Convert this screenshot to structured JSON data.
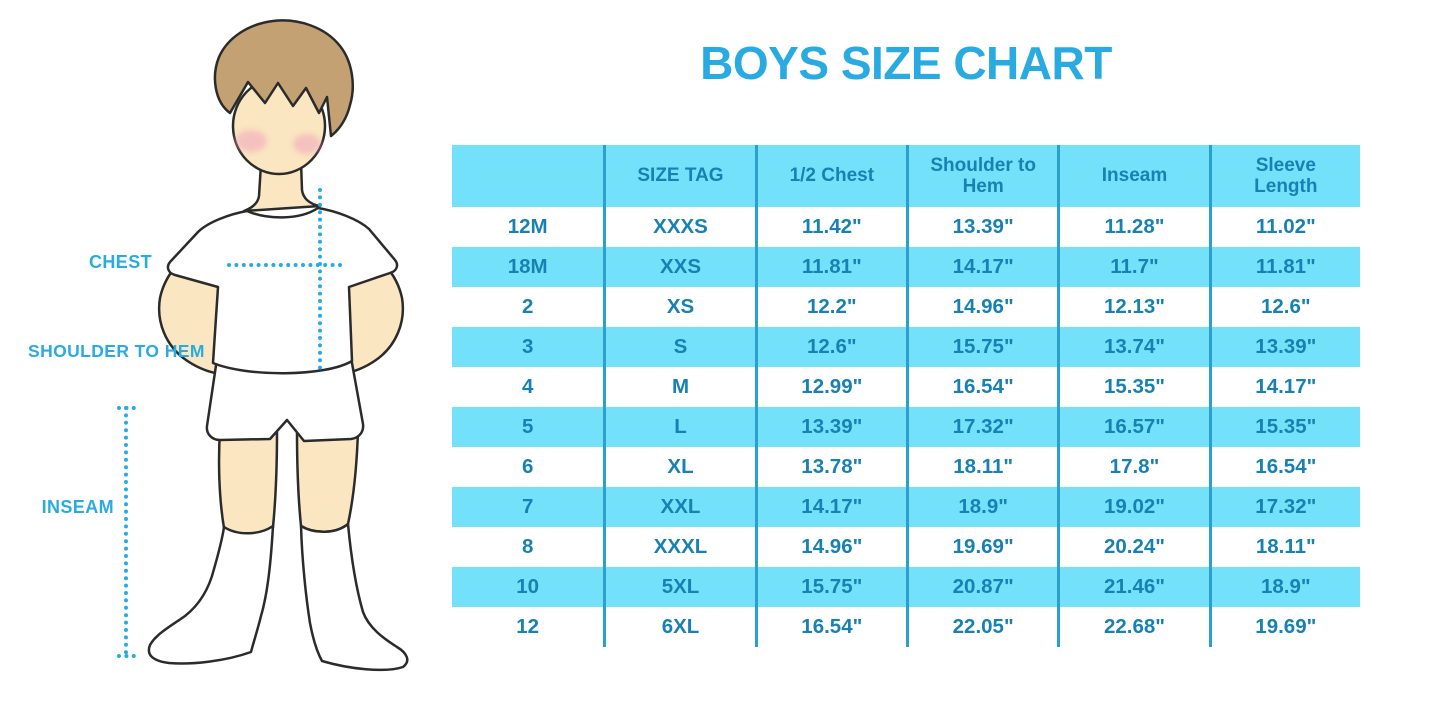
{
  "title": "BOYS SIZE CHART",
  "figure": {
    "name": "boy-measurement-illustration",
    "labels": {
      "chest": "CHEST",
      "shoulder_to_hem": "SHOULDER TO HEM",
      "inseam": "INSEAM"
    }
  },
  "colors": {
    "accent_blue": "#29ABE2",
    "table_text_blue": "#1781B3",
    "stripe_cyan": "#74E1FB",
    "separator_blue": "#2CA0CC",
    "skin": "#FAE6C0",
    "hair_brown": "#C4A172",
    "blush_pink": "#F2A9BE"
  },
  "chart_data": {
    "type": "table",
    "title": "BOYS SIZE CHART",
    "headers": [
      "",
      "SIZE TAG",
      "1/2 Chest",
      "Shoulder to Hem",
      "Inseam",
      "Sleeve Length"
    ],
    "rows": [
      [
        "12M",
        "XXXS",
        "11.42\"",
        "13.39\"",
        "11.28\"",
        "11.02\""
      ],
      [
        "18M",
        "XXS",
        "11.81\"",
        "14.17\"",
        "11.7\"",
        "11.81\""
      ],
      [
        "2",
        "XS",
        "12.2\"",
        "14.96\"",
        "12.13\"",
        "12.6\""
      ],
      [
        "3",
        "S",
        "12.6\"",
        "15.75\"",
        "13.74\"",
        "13.39\""
      ],
      [
        "4",
        "M",
        "12.99\"",
        "16.54\"",
        "15.35\"",
        "14.17\""
      ],
      [
        "5",
        "L",
        "13.39\"",
        "17.32\"",
        "16.57\"",
        "15.35\""
      ],
      [
        "6",
        "XL",
        "13.78\"",
        "18.11\"",
        "17.8\"",
        "16.54\""
      ],
      [
        "7",
        "XXL",
        "14.17\"",
        "18.9\"",
        "19.02\"",
        "17.32\""
      ],
      [
        "8",
        "XXXL",
        "14.96\"",
        "19.69\"",
        "20.24\"",
        "18.11\""
      ],
      [
        "10",
        "5XL",
        "15.75\"",
        "20.87\"",
        "21.46\"",
        "18.9\""
      ],
      [
        "12",
        "6XL",
        "16.54\"",
        "22.05\"",
        "22.68\"",
        "19.69\""
      ]
    ],
    "layout": {
      "row_striping": "alternating white / cyan starting with white body row",
      "column_separators": "vertical blue lines between all 6 columns, full table height",
      "grid": "no horizontal lines"
    }
  }
}
